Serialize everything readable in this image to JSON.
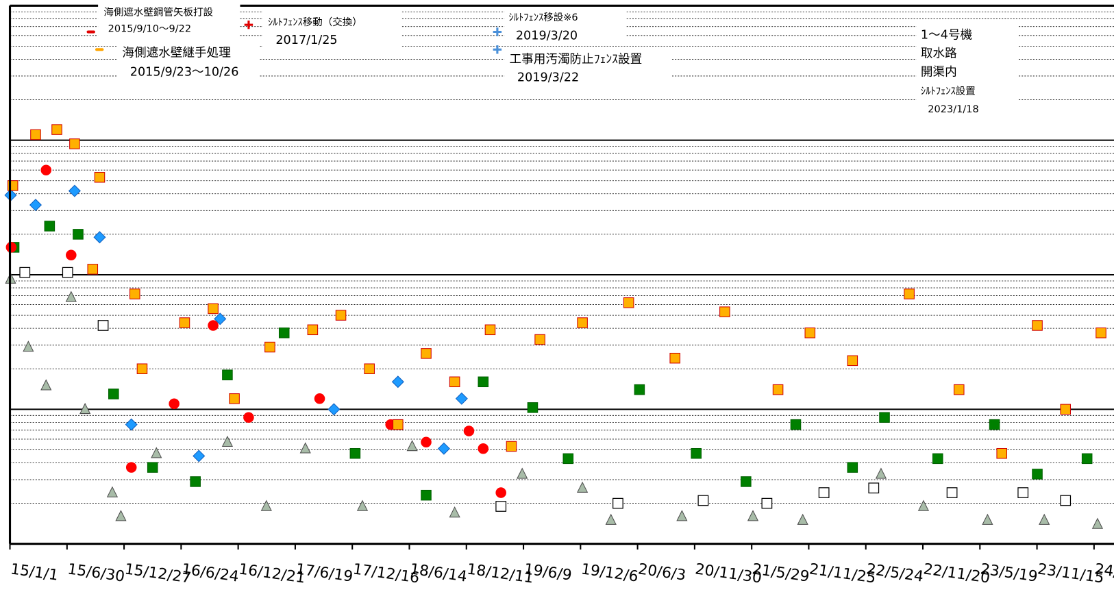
{
  "chart_data": {
    "type": "scatter",
    "log_y": true,
    "grid": true,
    "xlim": [
      "2015-01-01",
      "2024-07-15"
    ],
    "ylim": [
      0.1,
      1000
    ],
    "yticks": [
      0.1,
      1,
      10,
      100,
      1000
    ],
    "xticks": [
      {
        "value": "2015-01-01",
        "label": "15/1/1"
      },
      {
        "value": "2015-06-30",
        "label": "15/6/30"
      },
      {
        "value": "2015-12-27",
        "label": "15/12/27"
      },
      {
        "value": "2016-06-24",
        "label": "16/6/24"
      },
      {
        "value": "2016-12-21",
        "label": "16/12/21"
      },
      {
        "value": "2017-06-19",
        "label": "17/6/19"
      },
      {
        "value": "2017-12-16",
        "label": "17/12/16"
      },
      {
        "value": "2018-06-14",
        "label": "18/6/14"
      },
      {
        "value": "2018-12-11",
        "label": "18/12/11"
      },
      {
        "value": "2019-06-09",
        "label": "19/6/9"
      },
      {
        "value": "2019-12-06",
        "label": "19/12/6"
      },
      {
        "value": "2020-06-03",
        "label": "20/6/3"
      },
      {
        "value": "2020-11-30",
        "label": "20/11/30"
      },
      {
        "value": "2021-05-29",
        "label": "21/5/29"
      },
      {
        "value": "2021-11-25",
        "label": "21/11/25"
      },
      {
        "value": "2022-05-24",
        "label": "22/5/24"
      },
      {
        "value": "2022-11-20",
        "label": "22/11/20"
      },
      {
        "value": "2023-05-19",
        "label": "23/5/19"
      },
      {
        "value": "2023-11-15",
        "label": "23/11/15"
      },
      {
        "value": "2024-05-13",
        "label": "24/"
      }
    ],
    "annotations": [
      {
        "lines": [
          "海側遮水壁鋼管矢板打設",
          "2015/9/10～9/22"
        ],
        "marker": "dash",
        "color": "#e00000"
      },
      {
        "lines": [
          "海側遮水壁継手処理",
          "2015/9/23～10/26"
        ],
        "marker": "dash",
        "color": "#ffa500"
      },
      {
        "lines": [
          "ｼﾙﾄﾌｪﾝｽ移動（交換）",
          "2017/1/25"
        ],
        "marker": "plus",
        "color": "#e00000"
      },
      {
        "lines": [
          "ｼﾙﾄﾌｪﾝｽ移設※6",
          "2019/3/20"
        ],
        "marker": "plus",
        "color": "#4a90d9"
      },
      {
        "lines": [
          "工事用汚濁防止ﾌｪﾝｽ設置",
          "2019/3/22"
        ],
        "marker": "plus",
        "color": "#4a90d9"
      },
      {
        "lines": [
          "1～4号機",
          "取水路",
          "開渠内",
          "ｼﾙﾄﾌｪﾝｽ設置",
          "2023/1/18"
        ]
      }
    ],
    "series": [
      {
        "marker": "triangle",
        "color": "#a8bca8",
        "edgecolor": "#4d4d4d",
        "x": [
          "2015-01-03",
          "2015-02-28",
          "2015-04-25",
          "2015-07-13",
          "2015-08-26",
          "2015-11-20",
          "2015-12-17",
          "2016-04-07",
          "2016-11-17",
          "2017-03-20",
          "2017-07-21",
          "2018-01-17",
          "2018-06-23",
          "2018-11-04",
          "2019-06-05",
          "2019-12-12",
          "2020-03-11",
          "2020-10-21",
          "2021-06-02",
          "2021-11-06",
          "2022-07-11",
          "2022-11-22",
          "2023-06-12",
          "2023-12-08",
          "2024-05-24"
        ],
        "values": [
          9.3,
          2.9,
          1.5,
          6.8,
          1.0,
          0.24,
          0.16,
          0.47,
          0.57,
          0.19,
          0.51,
          0.19,
          0.53,
          0.17,
          0.33,
          0.26,
          0.15,
          0.16,
          0.16,
          0.15,
          0.33,
          0.19,
          0.15,
          0.15,
          0.14
        ]
      },
      {
        "marker": "open-square",
        "color": "#ffffff",
        "edgecolor": "#000000",
        "x": [
          "2015-02-17",
          "2015-07-02",
          "2015-10-22",
          "2019-03-30",
          "2020-04-02",
          "2020-12-27",
          "2021-07-16",
          "2022-01-12",
          "2022-06-18",
          "2023-02-20",
          "2023-10-02",
          "2024-02-13"
        ],
        "values": [
          10.4,
          10.4,
          4.2,
          0.19,
          0.2,
          0.21,
          0.2,
          0.24,
          0.26,
          0.24,
          0.24,
          0.21
        ]
      },
      {
        "marker": "square",
        "color": "#008000",
        "edgecolor": "#006000",
        "x": [
          "2015-01-14",
          "2015-05-06",
          "2015-08-04",
          "2015-11-24",
          "2016-03-26",
          "2016-08-08",
          "2016-11-17",
          "2017-05-15",
          "2017-12-25",
          "2018-08-06",
          "2019-02-02",
          "2019-07-08",
          "2019-10-28",
          "2020-06-09",
          "2020-12-05",
          "2021-05-11",
          "2021-10-15",
          "2022-04-12",
          "2022-07-22",
          "2023-01-06",
          "2023-07-04",
          "2023-11-16",
          "2024-04-21"
        ],
        "values": [
          16,
          23,
          20,
          1.3,
          0.37,
          0.29,
          1.8,
          3.7,
          0.47,
          0.23,
          1.6,
          1.03,
          0.43,
          1.4,
          0.47,
          0.29,
          0.77,
          0.37,
          0.87,
          0.43,
          0.77,
          0.33,
          0.43
        ]
      },
      {
        "marker": "circle",
        "color": "#ff0000",
        "edgecolor": "#ff0000",
        "x": [
          "2015-01-05",
          "2015-04-25",
          "2015-07-13",
          "2016-01-19",
          "2016-06-02",
          "2016-10-03",
          "2017-01-23",
          "2017-09-04",
          "2018-04-16",
          "2018-08-06",
          "2018-12-19",
          "2019-02-02",
          "2019-03-30"
        ],
        "values": [
          16,
          60,
          14,
          0.37,
          1.1,
          4.2,
          0.87,
          1.2,
          0.77,
          0.57,
          0.69,
          0.51,
          0.24
        ]
      },
      {
        "marker": "diamond",
        "color": "#1e9bff",
        "edgecolor": "#1060c0",
        "x": [
          "2015-01-03",
          "2015-03-23",
          "2015-07-24",
          "2015-10-11",
          "2016-01-19",
          "2016-08-19",
          "2016-10-25",
          "2017-10-19",
          "2018-05-09",
          "2018-10-01",
          "2018-11-26"
        ],
        "values": [
          39,
          33,
          42,
          19,
          0.77,
          0.45,
          4.7,
          1.0,
          1.6,
          0.51,
          1.2
        ]
      },
      {
        "marker": "square",
        "color": "#ffb000",
        "edgecolor": "#d00000",
        "x": [
          "2015-01-10",
          "2015-03-23",
          "2015-05-29",
          "2015-07-24",
          "2015-10-11",
          "2015-09-19",
          "2016-01-30",
          "2016-02-22",
          "2016-07-05",
          "2016-10-03",
          "2016-12-09",
          "2017-03-31",
          "2017-08-13",
          "2017-11-10",
          "2018-02-08",
          "2018-05-09",
          "2018-08-06",
          "2018-11-04",
          "2019-02-24",
          "2019-05-02",
          "2019-07-31",
          "2019-12-12",
          "2020-05-06",
          "2020-09-29",
          "2021-03-05",
          "2021-08-20",
          "2021-11-29",
          "2022-04-12",
          "2022-10-08",
          "2023-03-14",
          "2023-07-27",
          "2023-11-16",
          "2024-02-13",
          "2024-06-04"
        ],
        "values": [
          46,
          110,
          120,
          94,
          53,
          11,
          7.2,
          2.0,
          4.4,
          5.6,
          1.2,
          2.9,
          3.9,
          5.0,
          2.0,
          0.77,
          2.6,
          1.6,
          3.9,
          0.53,
          3.3,
          4.4,
          6.2,
          2.4,
          5.3,
          1.4,
          3.7,
          2.3,
          7.2,
          1.4,
          0.47,
          4.2,
          1.0,
          3.7
        ]
      }
    ]
  }
}
